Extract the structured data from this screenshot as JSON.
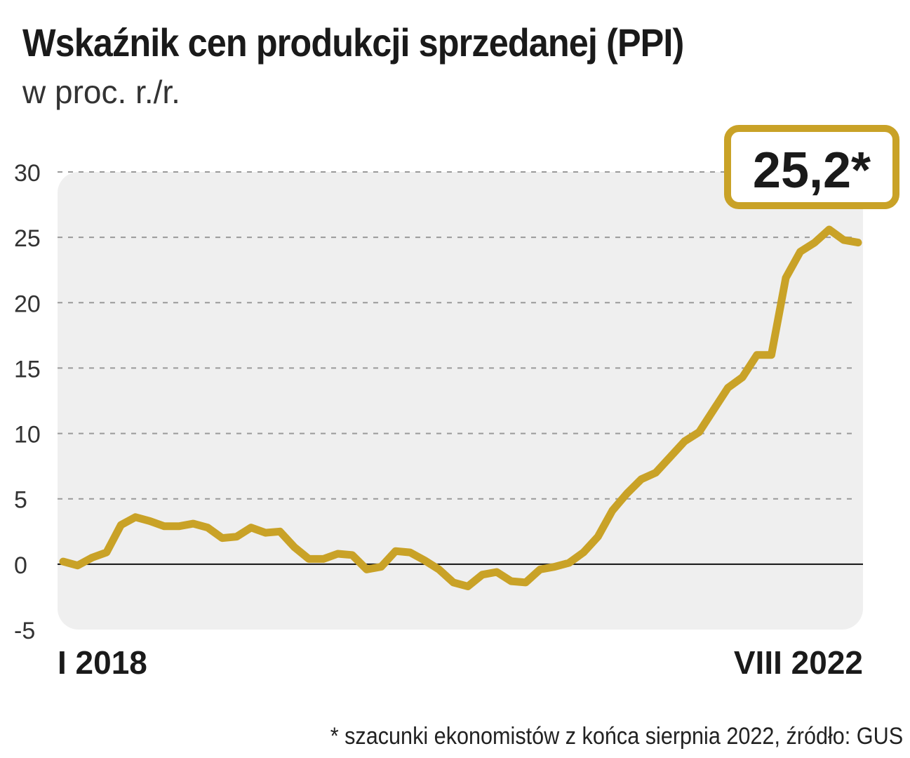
{
  "title": "Wskaźnik cen produkcji sprzedanej (PPI)",
  "subtitle": "w proc. r./r.",
  "callout": "25,2*",
  "footnote": "* szacunki ekonomistów z końca sierpnia 2022, źródło: GUS",
  "colors": {
    "line": "#c9a227",
    "plot_bg": "#efefef",
    "grid": "#9a9a9a",
    "zero": "#111111",
    "text": "#1a1a1a"
  },
  "chart_data": {
    "type": "line",
    "title": "Wskaźnik cen produkcji sprzedanej (PPI)",
    "ylabel": "w proc. r./r.",
    "x_start_label": "I 2018",
    "x_end_label": "VIII 2022",
    "ylim": [
      -5,
      30
    ],
    "yticks": [
      30,
      25,
      20,
      15,
      10,
      5,
      0,
      -5
    ],
    "grid": true,
    "series": [
      {
        "values": [
          0.2,
          -0.1,
          0.5,
          0.9,
          3.0,
          3.6,
          3.3,
          2.9,
          2.9,
          3.1,
          2.8,
          2.0,
          2.1,
          2.8,
          2.4,
          2.5,
          1.3,
          0.4,
          0.4,
          0.8,
          0.7,
          -0.4,
          -0.2,
          1.0,
          0.9,
          0.3,
          -0.4,
          -1.4,
          -1.7,
          -0.8,
          -0.6,
          -1.3,
          -1.4,
          -0.4,
          -0.2,
          0.1,
          0.9,
          2.1,
          4.1,
          5.4,
          6.5,
          7.0,
          8.2,
          9.4,
          10.1,
          11.8,
          13.5,
          14.3,
          16.0,
          16.0,
          21.9,
          23.9,
          24.6,
          25.6,
          24.8,
          24.6
        ]
      }
    ]
  }
}
